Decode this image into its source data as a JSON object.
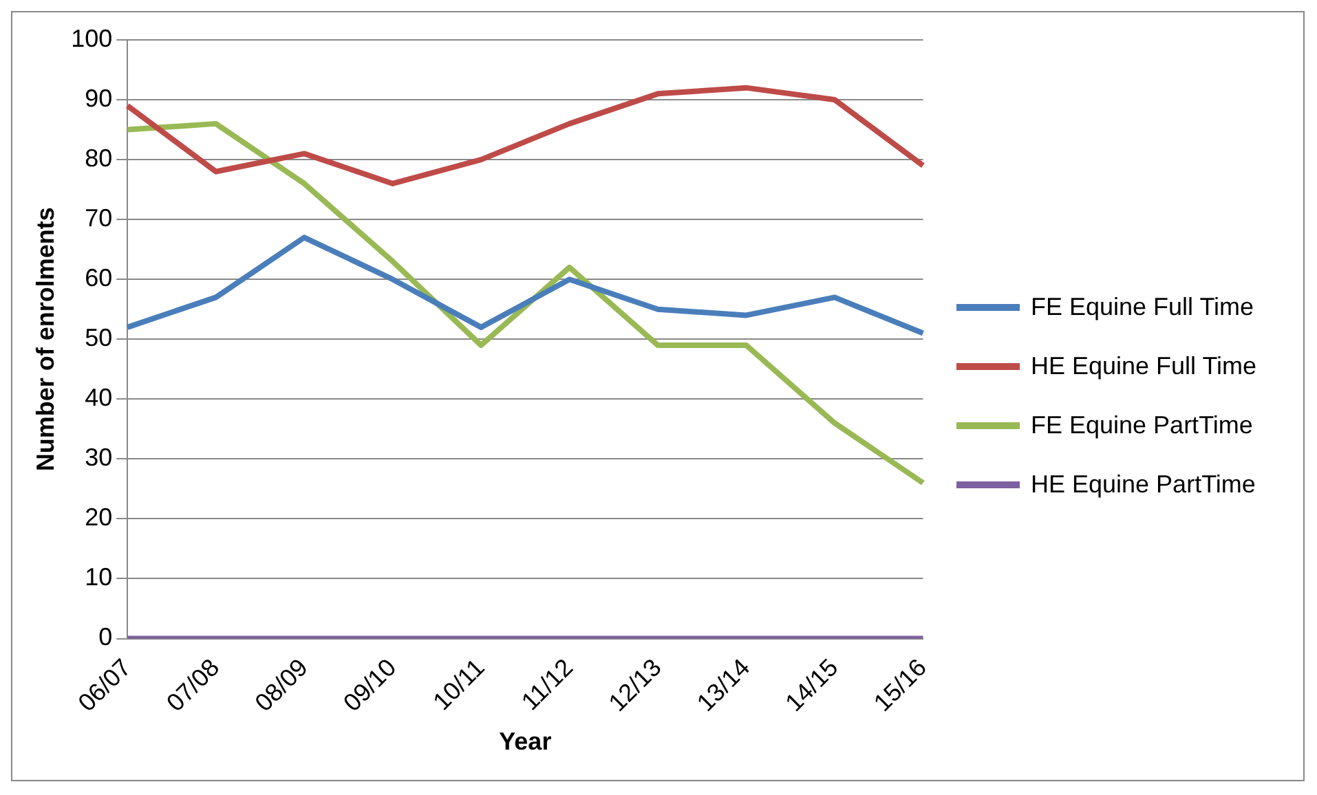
{
  "chart_data": {
    "type": "line",
    "xlabel": "Year",
    "ylabel": "Number of enrolments",
    "categories": [
      "06/07",
      "07/08",
      "08/09",
      "09/10",
      "10/11",
      "11/12",
      "12/13",
      "13/14",
      "14/15",
      "15/16"
    ],
    "series": [
      {
        "name": "FE Equine Full Time",
        "color": "#4a7ebb",
        "values": [
          52,
          57,
          67,
          60,
          52,
          60,
          55,
          54,
          57,
          51
        ]
      },
      {
        "name": "HE Equine Full Time",
        "color": "#be4b48",
        "values": [
          89,
          78,
          81,
          76,
          80,
          86,
          91,
          92,
          90,
          79
        ]
      },
      {
        "name": "FE Equine PartTime",
        "color": "#98b954",
        "values": [
          85,
          86,
          76,
          63,
          49,
          62,
          49,
          49,
          36,
          26
        ]
      },
      {
        "name": "HE Equine PartTime",
        "color": "#7d60a0",
        "values": [
          0,
          0,
          0,
          0,
          0,
          0,
          0,
          0,
          0,
          0
        ]
      }
    ],
    "ylim": [
      0,
      100
    ],
    "yticks": [
      0,
      10,
      20,
      30,
      40,
      50,
      60,
      70,
      80,
      90,
      100
    ],
    "grid": "y",
    "legend": "right",
    "marker": "none",
    "line_style": "solid"
  }
}
